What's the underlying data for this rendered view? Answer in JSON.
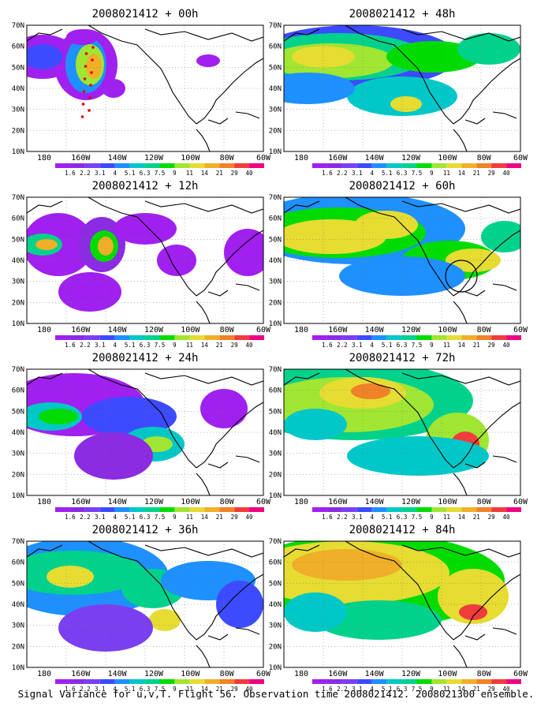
{
  "panels": [
    {
      "title": "2008021412 + 00h",
      "lead": "00h"
    },
    {
      "title": "2008021412 + 48h",
      "lead": "48h"
    },
    {
      "title": "2008021412 + 12h",
      "lead": "12h"
    },
    {
      "title": "2008021412 + 60h",
      "lead": "60h"
    },
    {
      "title": "2008021412 + 24h",
      "lead": "24h"
    },
    {
      "title": "2008021412 + 72h",
      "lead": "72h"
    },
    {
      "title": "2008021412 + 36h",
      "lead": "36h"
    },
    {
      "title": "2008021412 + 84h",
      "lead": "84h"
    }
  ],
  "lat_labels": [
    "70N",
    "60N",
    "50N",
    "40N",
    "30N",
    "20N",
    "10N"
  ],
  "lon_labels": [
    "180",
    "160W",
    "140W",
    "120W",
    "100W",
    "80W",
    "60W"
  ],
  "colorbar": {
    "labels": [
      "1.6",
      "2.2",
      "3.1",
      "4",
      "5.1",
      "6.3",
      "7.5",
      "9",
      "11",
      "14",
      "21",
      "29",
      "40"
    ],
    "colors": [
      "#a020f0",
      "#8b2be2",
      "#7b3ff2",
      "#3c4bff",
      "#1e90ff",
      "#00c8c8",
      "#00d28c",
      "#00dc00",
      "#a0e632",
      "#e6dc32",
      "#f0af28",
      "#f08228",
      "#f03c3c",
      "#f00082"
    ]
  },
  "caption": "Signal Variance for u,v,T. Flight 56. Observation time 2008021412. 2008021300 ensemble."
}
